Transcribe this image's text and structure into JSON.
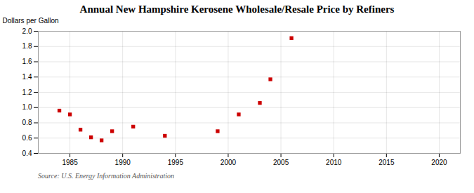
{
  "chart_data": {
    "type": "scatter",
    "title": "Annual New Hampshire Kerosene Wholesale/Resale Price by Refiners",
    "ylabel": "Dollars per Gallon",
    "source": "Source: U.S. Energy Information Administration",
    "x": [
      1984,
      1985,
      1986,
      1987,
      1988,
      1989,
      1991,
      1994,
      1999,
      2001,
      2003,
      2004,
      2006
    ],
    "values": [
      0.96,
      0.91,
      0.71,
      0.61,
      0.57,
      0.69,
      0.75,
      0.63,
      0.69,
      0.91,
      1.06,
      1.37,
      1.91
    ],
    "color": "#cc0000",
    "marker": "square",
    "xlim": [
      1982,
      2022
    ],
    "ylim": [
      0.4,
      2.0
    ],
    "xticks": [
      1985,
      1990,
      1995,
      2000,
      2005,
      2010,
      2015,
      2020
    ],
    "yticks": [
      0.4,
      0.6,
      0.8,
      {
        "value": 1.0,
        "label": "1.0"
      },
      1.2,
      1.4,
      1.6,
      1.8,
      {
        "value": 2.0,
        "label": "2.0"
      }
    ],
    "grid": true
  }
}
